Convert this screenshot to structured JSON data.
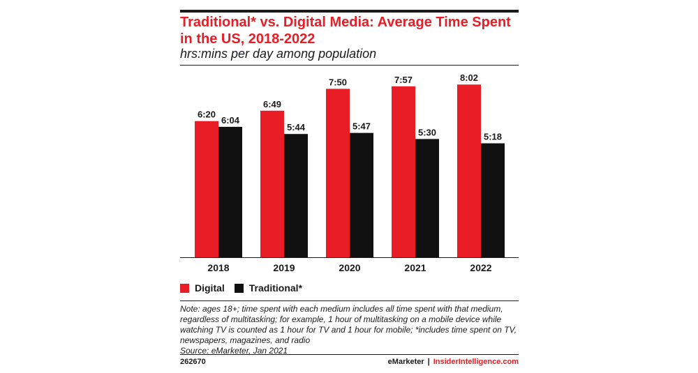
{
  "header": {
    "title": "Traditional* vs. Digital Media: Average Time Spent in the US, 2018-2022",
    "subtitle": "hrs:mins per day among population"
  },
  "colors": {
    "digital": "#e81d25",
    "traditional": "#111111",
    "accent": "#e81d25"
  },
  "chart_data": {
    "type": "bar",
    "title": "Traditional* vs. Digital Media: Average Time Spent in the US, 2018-2022",
    "subtitle": "hrs:mins per day among population",
    "xlabel": "",
    "ylabel": "",
    "categories": [
      "2018",
      "2019",
      "2020",
      "2021",
      "2022"
    ],
    "series": [
      {
        "name": "Digital",
        "color": "#e81d25",
        "values": [
          380,
          409,
          470,
          477,
          482
        ],
        "labels": [
          "6:20",
          "6:49",
          "7:50",
          "7:57",
          "8:02"
        ]
      },
      {
        "name": "Traditional*",
        "color": "#111111",
        "values": [
          364,
          344,
          347,
          330,
          318
        ],
        "labels": [
          "6:04",
          "5:44",
          "5:47",
          "5:30",
          "5:18"
        ]
      }
    ],
    "ylim": [
      0,
      535
    ],
    "grid": false,
    "legend": "bottom-left"
  },
  "legend": {
    "digital": "Digital",
    "traditional": "Traditional*"
  },
  "notes": [
    "Note: ages 18+; time spent with each medium includes all time spent with that medium,",
    "regardless of multitasking; for example, 1 hour of multitasking on a mobile device while",
    "watching TV is counted as 1 hour for TV and 1 hour for mobile; *includes time spent on TV,",
    "newspapers, magazines, and radio",
    "Source: eMarketer, Jan 2021"
  ],
  "footer": {
    "chart_id": "262670",
    "brand_primary": "eMarketer",
    "separator": "|",
    "brand_secondary": "InsiderIntelligence.com"
  }
}
